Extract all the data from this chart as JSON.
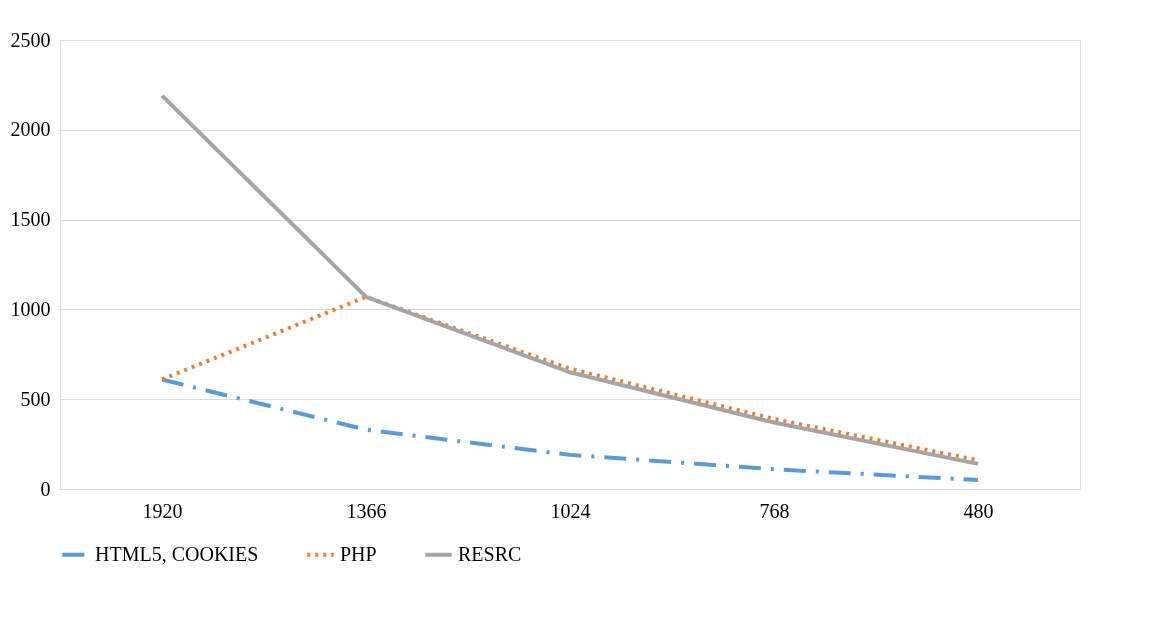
{
  "chart_data": {
    "type": "line",
    "categories": [
      "1920",
      "1366",
      "1024",
      "768",
      "480"
    ],
    "series": [
      {
        "name": "HTML5, COOKIES",
        "color": "#5b9bd5",
        "line_style": "dashed",
        "values": [
          610,
          330,
          190,
          110,
          50
        ]
      },
      {
        "name": "PHP",
        "color": "#ed7d31",
        "line_style": "dotted",
        "values": [
          610,
          1070,
          670,
          390,
          160
        ]
      },
      {
        "name": "RESRC",
        "color": "#a5a5a5",
        "line_style": "solid",
        "values": [
          2190,
          1070,
          650,
          370,
          140
        ]
      }
    ],
    "ylim": [
      0,
      2500
    ],
    "yticks": [
      0,
      500,
      1000,
      1500,
      2000,
      2500
    ],
    "grid": "y",
    "legend": "bottom",
    "marker": "none"
  }
}
